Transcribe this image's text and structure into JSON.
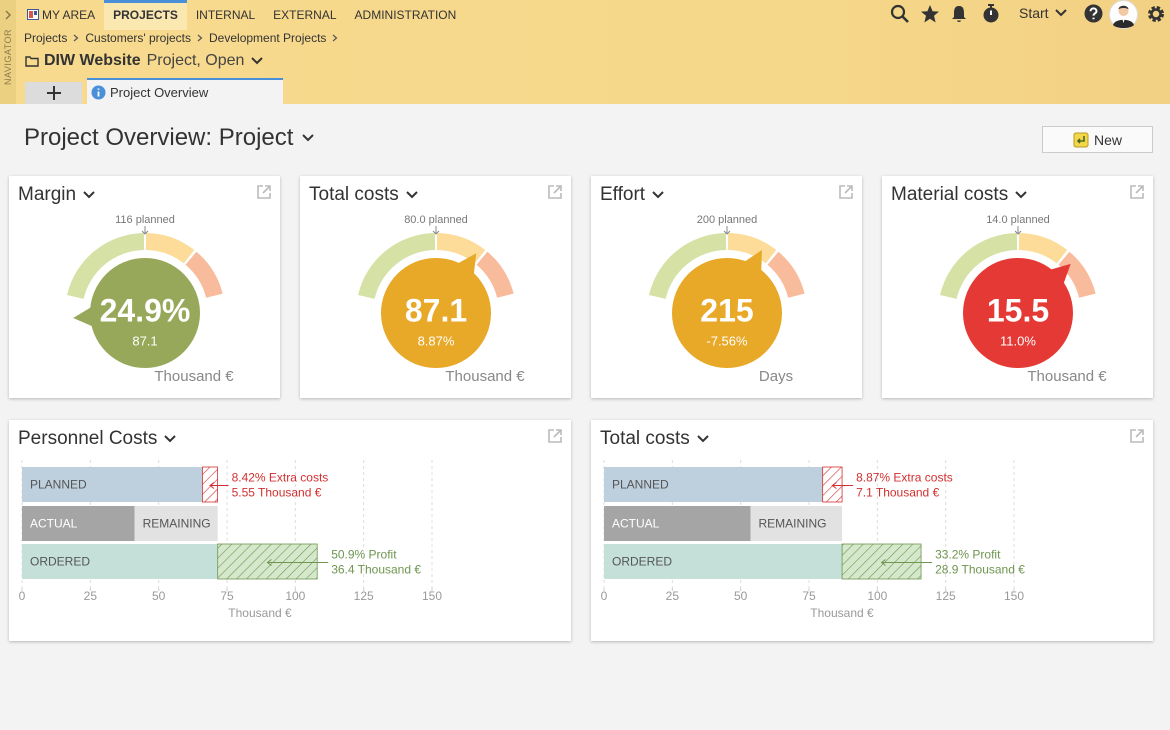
{
  "header": {
    "side_label": "NAVIGATOR",
    "menu": [
      "MY AREA",
      "PROJECTS",
      "INTERNAL",
      "EXTERNAL",
      "ADMINISTRATION"
    ],
    "active_menu": 1,
    "start": "Start",
    "breadcrumbs": [
      "Projects",
      "Customers' projects",
      "Development Projects"
    ],
    "project": {
      "name": "DIW Website",
      "status": "Project, Open"
    },
    "tab": "Project Overview"
  },
  "page": {
    "title": "Project Overview: Project",
    "button": "New"
  },
  "gauges": [
    {
      "title": "Margin",
      "planned": "116 planned",
      "value": "24.9%",
      "sub": "87.1",
      "unit": "Thousand €",
      "color": "#98a85a"
    },
    {
      "title": "Total costs",
      "planned": "80.0 planned",
      "value": "87.1",
      "sub": "8.87%",
      "unit": "Thousand €",
      "color": "#e8a828"
    },
    {
      "title": "Effort",
      "planned": "200 planned",
      "value": "215",
      "sub": "-7.56%",
      "unit": "Days",
      "color": "#e8a828"
    },
    {
      "title": "Material costs",
      "planned": "14.0 planned",
      "value": "15.5",
      "sub": "11.0%",
      "unit": "Thousand €",
      "color": "#e53935"
    }
  ],
  "chart_data": [
    {
      "type": "bar",
      "title": "Personnel Costs",
      "xlim": [
        0,
        150
      ],
      "xticks": [
        0,
        25,
        50,
        75,
        100,
        125,
        150
      ],
      "xlabel": "Thousand €",
      "grid": true,
      "rows": [
        {
          "segments": [
            {
              "label": "PLANNED",
              "value": 66.0,
              "color": "#bed0de"
            },
            {
              "value": 5.55,
              "color": "#d32f2f",
              "background": "#ffffff",
              "hatch": true,
              "notes": [
                "8.42% Extra costs",
                "5.55 Thousand €"
              ]
            }
          ]
        },
        {
          "segments": [
            {
              "label": "ACTUAL",
              "value": 41.2,
              "color": "#a5a5a5"
            },
            {
              "label": "REMAINING",
              "value": 30.4,
              "color": "#e2e2e2"
            }
          ]
        },
        {
          "segments": [
            {
              "label": "ORDERED",
              "value": 71.6,
              "color": "#c5e0d9"
            },
            {
              "value": 36.4,
              "color": "#6f9550",
              "background": "#d5e8cc",
              "hatch": true,
              "notes": [
                "50.9% Profit",
                "36.4 Thousand €"
              ]
            }
          ]
        }
      ]
    },
    {
      "type": "bar",
      "title": "Total costs",
      "xlim": [
        0,
        150
      ],
      "xticks": [
        0,
        25,
        50,
        75,
        100,
        125,
        150
      ],
      "xlabel": "Thousand €",
      "grid": true,
      "rows": [
        {
          "segments": [
            {
              "label": "PLANNED",
              "value": 80.0,
              "color": "#bed0de"
            },
            {
              "value": 7.1,
              "color": "#d32f2f",
              "background": "#ffffff",
              "hatch": true,
              "notes": [
                "8.87% Extra costs",
                "7.1 Thousand €"
              ]
            }
          ]
        },
        {
          "segments": [
            {
              "label": "ACTUAL",
              "value": 53.6,
              "color": "#a5a5a5"
            },
            {
              "label": "REMAINING",
              "value": 33.5,
              "color": "#e2e2e2"
            }
          ]
        },
        {
          "segments": [
            {
              "label": "ORDERED",
              "value": 87.1,
              "color": "#c5e0d9"
            },
            {
              "value": 28.9,
              "color": "#6f9550",
              "background": "#d5e8cc",
              "hatch": true,
              "notes": [
                "33.2% Profit",
                "28.9 Thousand €"
              ]
            }
          ]
        }
      ]
    }
  ]
}
